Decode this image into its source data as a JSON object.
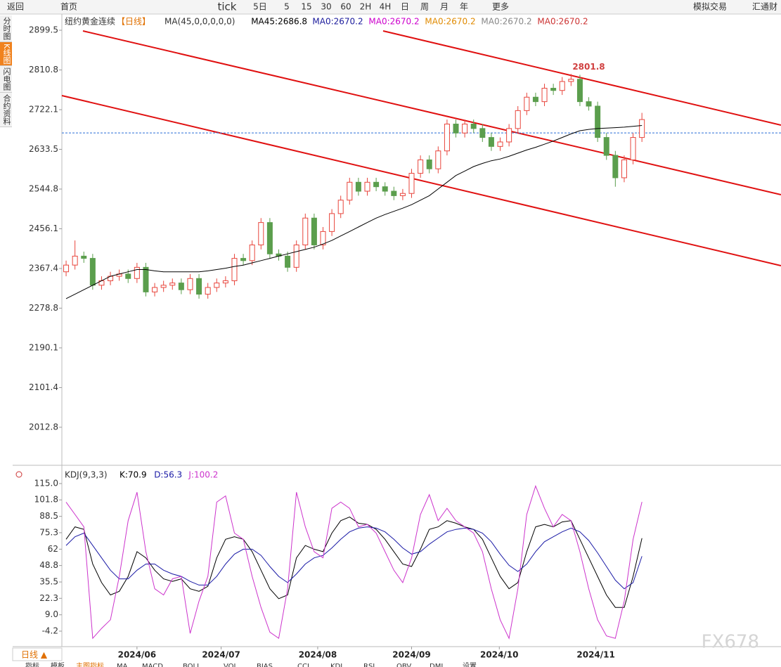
{
  "toolbar": [
    "返回",
    "首页",
    "tick",
    "5日",
    "5",
    "15",
    "30",
    "60",
    "2H",
    "4H",
    "日",
    "周",
    "月",
    "年",
    "更多",
    "模拟交易",
    "汇通财"
  ],
  "sidebar": [
    "分时图",
    "K线图",
    "闪电图",
    "合约资料"
  ],
  "footer": {
    "period": "日线 ▲",
    "tabs": [
      "指标",
      "模板",
      "主图指标",
      "MA",
      "MACD",
      "BOLL",
      "VOL",
      "BIAS",
      "CCI",
      "KDJ",
      "RSI",
      "OBV",
      "DMI",
      "设置"
    ]
  },
  "watermark": "FX678",
  "chart_data": [
    {
      "type": "candlestick",
      "title": "纽约黄金连续",
      "period": "【日线】",
      "legend": [
        {
          "text": "MA(45,0,0,0,0,0)",
          "color": "#333"
        },
        {
          "text": "MA45:2686.8",
          "color": "#000"
        },
        {
          "text": "MA0:2670.2",
          "color": "#1c1c9c"
        },
        {
          "text": "MA0:2670.2",
          "color": "#cc00cc"
        },
        {
          "text": "MA0:2670.2",
          "color": "#e08a00"
        },
        {
          "text": "MA0:2670.2",
          "color": "#888888"
        },
        {
          "text": "MA0:2670.2",
          "color": "#cc3333"
        }
      ],
      "up_color": "#e8453c",
      "down_color": "#5b9e4d",
      "open": [
        2360,
        2375,
        2395,
        2390,
        2330,
        2340,
        2350,
        2355,
        2345,
        2370,
        2315,
        2325,
        2330,
        2335,
        2320,
        2345,
        2310,
        2325,
        2335,
        2340,
        2390,
        2385,
        2420,
        2470,
        2400,
        2395,
        2370,
        2420,
        2480,
        2420,
        2450,
        2490,
        2520,
        2560,
        2540,
        2560,
        2550,
        2540,
        2530,
        2535,
        2580,
        2610,
        2590,
        2630,
        2690,
        2670,
        2690,
        2680,
        2660,
        2640,
        2650,
        2680,
        2720,
        2750,
        2740,
        2770,
        2765,
        2785,
        2790,
        2740,
        2730,
        2660,
        2620,
        2570,
        2610,
        2660
      ],
      "high": [
        2385,
        2430,
        2405,
        2400,
        2350,
        2360,
        2365,
        2365,
        2380,
        2380,
        2335,
        2340,
        2345,
        2345,
        2355,
        2355,
        2335,
        2345,
        2350,
        2400,
        2400,
        2430,
        2480,
        2480,
        2410,
        2405,
        2430,
        2490,
        2490,
        2460,
        2500,
        2530,
        2570,
        2570,
        2570,
        2570,
        2560,
        2550,
        2545,
        2590,
        2620,
        2620,
        2640,
        2700,
        2700,
        2700,
        2700,
        2690,
        2670,
        2660,
        2690,
        2730,
        2760,
        2760,
        2780,
        2780,
        2795,
        2801.8,
        2800,
        2750,
        2740,
        2670,
        2630,
        2620,
        2670,
        2715
      ],
      "low": [
        2350,
        2365,
        2380,
        2320,
        2320,
        2330,
        2340,
        2335,
        2335,
        2305,
        2305,
        2315,
        2320,
        2310,
        2310,
        2300,
        2300,
        2315,
        2325,
        2330,
        2375,
        2375,
        2410,
        2390,
        2385,
        2360,
        2360,
        2410,
        2410,
        2410,
        2440,
        2480,
        2510,
        2530,
        2530,
        2540,
        2530,
        2520,
        2520,
        2525,
        2570,
        2580,
        2580,
        2620,
        2660,
        2660,
        2670,
        2650,
        2630,
        2630,
        2640,
        2670,
        2710,
        2730,
        2730,
        2755,
        2755,
        2775,
        2730,
        2720,
        2650,
        2610,
        2550,
        2560,
        2600,
        2650
      ],
      "close": [
        2375,
        2395,
        2390,
        2330,
        2340,
        2350,
        2355,
        2345,
        2370,
        2315,
        2325,
        2330,
        2335,
        2320,
        2345,
        2310,
        2325,
        2335,
        2340,
        2390,
        2385,
        2420,
        2470,
        2400,
        2395,
        2370,
        2420,
        2480,
        2420,
        2450,
        2490,
        2520,
        2560,
        2540,
        2560,
        2550,
        2540,
        2530,
        2535,
        2580,
        2610,
        2590,
        2630,
        2690,
        2670,
        2690,
        2680,
        2660,
        2640,
        2650,
        2680,
        2720,
        2750,
        2740,
        2770,
        2765,
        2785,
        2790,
        2740,
        2730,
        2660,
        2620,
        2570,
        2610,
        2660,
        2700
      ],
      "series": [
        {
          "color": "#000000",
          "values": [
            2300,
            2310,
            2320,
            2330,
            2340,
            2350,
            2355,
            2360,
            2365,
            2365,
            2362,
            2360,
            2360,
            2360,
            2360,
            2360,
            2362,
            2365,
            2368,
            2372,
            2375,
            2380,
            2385,
            2390,
            2395,
            2400,
            2405,
            2410,
            2415,
            2422,
            2430,
            2440,
            2450,
            2460,
            2470,
            2480,
            2488,
            2495,
            2502,
            2510,
            2520,
            2530,
            2545,
            2560,
            2575,
            2585,
            2595,
            2602,
            2608,
            2612,
            2618,
            2625,
            2632,
            2638,
            2645,
            2652,
            2660,
            2668,
            2675,
            2678,
            2680,
            2681,
            2682,
            2683,
            2685,
            2686.8
          ]
        }
      ],
      "annotation": {
        "label": "2801.8",
        "index": 57
      },
      "hline": {
        "value": 2670.2,
        "color": "#2a6fd6"
      },
      "ylim": [
        1931,
        2932.5
      ],
      "yticks": [
        2899.5,
        2810.8,
        2722.1,
        2633.5,
        2544.8,
        2456.1,
        2367.4,
        2278.8,
        2190.1,
        2101.4,
        2012.8
      ],
      "xlim": [
        -0.48,
        80.7
      ],
      "xticks": [
        {
          "value": 8,
          "label": "2024/06"
        },
        {
          "value": 17.5,
          "label": "2024/07"
        },
        {
          "value": 28.4,
          "label": "2024/08"
        },
        {
          "value": 39,
          "label": "2024/09"
        },
        {
          "value": 48.9,
          "label": "2024/10"
        },
        {
          "value": 59.8,
          "label": "2024/11"
        }
      ]
    },
    {
      "type": "line",
      "title": "KDJ(9,3,3)",
      "series": [
        {
          "name": "K:70.9",
          "color": "#000000",
          "values": [
            70,
            80,
            78,
            50,
            35,
            25,
            28,
            40,
            60,
            55,
            45,
            38,
            36,
            38,
            30,
            28,
            32,
            55,
            70,
            72,
            70,
            60,
            45,
            30,
            22,
            25,
            55,
            65,
            62,
            60,
            75,
            85,
            88,
            83,
            82,
            78,
            70,
            60,
            50,
            48,
            62,
            78,
            80,
            85,
            83,
            80,
            78,
            70,
            55,
            40,
            30,
            35,
            60,
            80,
            82,
            80,
            84,
            85,
            70,
            55,
            40,
            25,
            15,
            15,
            40,
            70.9
          ]
        },
        {
          "name": "D:56.3",
          "color": "#1a1aa6",
          "values": [
            65,
            72,
            75,
            65,
            55,
            45,
            38,
            38,
            45,
            50,
            50,
            45,
            42,
            40,
            36,
            33,
            33,
            40,
            50,
            58,
            62,
            62,
            57,
            48,
            40,
            35,
            42,
            50,
            55,
            57,
            63,
            70,
            76,
            79,
            80,
            79,
            76,
            70,
            63,
            58,
            60,
            66,
            71,
            76,
            78,
            79,
            78,
            75,
            68,
            58,
            49,
            44,
            50,
            60,
            68,
            72,
            76,
            79,
            76,
            69,
            59,
            48,
            37,
            30,
            35,
            56.3
          ]
        },
        {
          "name": "J:100.2",
          "color": "#cc33cc",
          "values": [
            100,
            90,
            80,
            -10,
            -2,
            5,
            40,
            85,
            108,
            60,
            30,
            25,
            38,
            40,
            -6,
            20,
            40,
            100,
            105,
            75,
            70,
            40,
            15,
            -5,
            -10,
            30,
            108,
            80,
            60,
            55,
            95,
            100,
            95,
            80,
            82,
            75,
            60,
            45,
            35,
            55,
            90,
            106,
            85,
            95,
            85,
            80,
            75,
            60,
            30,
            5,
            -10,
            30,
            90,
            113,
            95,
            80,
            90,
            85,
            60,
            30,
            5,
            -8,
            -10,
            20,
            70,
            100.2
          ]
        }
      ],
      "ylim": [
        -16.7,
        118.4
      ],
      "yticks": [
        {
          "value": 115,
          "label": "115.0"
        },
        101.8,
        88.5,
        75.3,
        62.0,
        48.8,
        35.5,
        22.3,
        {
          "value": 9,
          "label": "9.0"
        },
        -4.2
      ]
    }
  ]
}
